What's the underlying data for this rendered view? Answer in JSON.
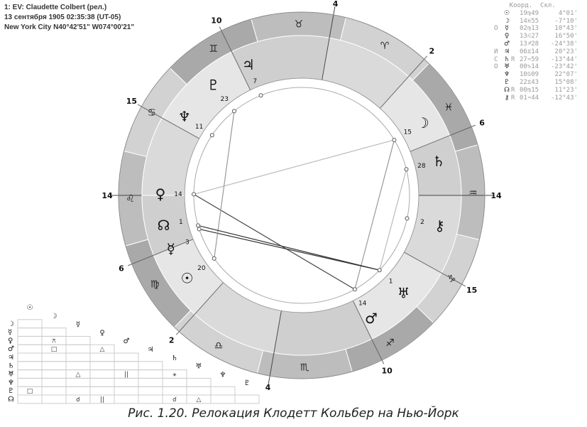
{
  "header": {
    "line1": "1: EV: Claudette Colbert (рел.)",
    "line2": "13 сентября 1905 02:35:38 (UT-05)",
    "line3": "New York City N40°42'51\" W074°00'21\""
  },
  "table": {
    "head": "    Коорд.  Скл.",
    "rows": [
      {
        "m": " ",
        "g": "☉",
        "r": " ",
        "c": "19♍49",
        "d": "  4°01'"
      },
      {
        "m": " ",
        "g": "☽",
        "r": " ",
        "c": "14♓55",
        "d": " -7°10'"
      },
      {
        "m": "О",
        "g": "☿",
        "r": " ",
        "c": "02♍13",
        "d": " 10°43'"
      },
      {
        "m": " ",
        "g": "♀",
        "r": " ",
        "c": "13♌27",
        "d": " 16°50'"
      },
      {
        "m": " ",
        "g": "♂",
        "r": " ",
        "c": "13♐28",
        "d": "-24°38'"
      },
      {
        "m": "И",
        "g": "♃",
        "r": " ",
        "c": "06♊14",
        "d": " 20°23'"
      },
      {
        "m": "С",
        "g": "♄",
        "r": "R",
        "c": "27♒59",
        "d": "-13°44'"
      },
      {
        "m": "О",
        "g": "♅",
        "r": " ",
        "c": "00♑14",
        "d": "-23°42'"
      },
      {
        "m": " ",
        "g": "♆",
        "r": " ",
        "c": "10♋09",
        "d": " 22°07'"
      },
      {
        "m": " ",
        "g": "♇",
        "r": " ",
        "c": "22♊43",
        "d": " 15°08'"
      },
      {
        "m": " ",
        "g": "☊",
        "r": "R",
        "c": "00♍15",
        "d": " 11°23'"
      },
      {
        "m": " ",
        "g": "⚷",
        "r": "R",
        "c": "01♒44",
        "d": "-12°43'"
      }
    ]
  },
  "chart": {
    "asc": 134,
    "signs": [
      "♈",
      "♉",
      "♊",
      "♋",
      "♌",
      "♍",
      "♎",
      "♏",
      "♐",
      "♑",
      "♒",
      "♓"
    ],
    "cusps": [
      {
        "lon": 134,
        "label": "14"
      },
      {
        "lon": 156,
        "label": "6"
      },
      {
        "lon": 182,
        "label": "2"
      },
      {
        "lon": 214,
        "label": "4"
      },
      {
        "lon": 250,
        "label": "10"
      },
      {
        "lon": 285,
        "label": "15"
      },
      {
        "lon": 314,
        "label": "14"
      },
      {
        "lon": 336,
        "label": "6"
      },
      {
        "lon": 2,
        "label": "2"
      },
      {
        "lon": 34,
        "label": "4"
      },
      {
        "lon": 70,
        "label": "10"
      },
      {
        "lon": 105,
        "label": "15"
      }
    ],
    "planets": [
      {
        "g": "☉",
        "lon": 169.8,
        "deg": "20"
      },
      {
        "g": "☽",
        "lon": 344.9,
        "deg": "15"
      },
      {
        "g": "☿",
        "lon": 152.2,
        "deg": "3"
      },
      {
        "g": "♀",
        "lon": 133.4,
        "deg": "14"
      },
      {
        "g": "♂",
        "lon": 253.5,
        "deg": "14"
      },
      {
        "g": "♃",
        "lon": 66.2,
        "deg": "7"
      },
      {
        "g": "♄",
        "lon": 328,
        "deg": "28"
      },
      {
        "g": "♅",
        "lon": 270.2,
        "deg": "1"
      },
      {
        "g": "♆",
        "lon": 100.1,
        "deg": "11"
      },
      {
        "g": "♇",
        "lon": 82.7,
        "deg": "23"
      },
      {
        "g": "☊",
        "lon": 150.2,
        "deg": "1"
      },
      {
        "g": "⚷",
        "lon": 301.7,
        "deg": "2"
      }
    ],
    "aspects": [
      [
        1,
        3,
        "#bbb"
      ],
      [
        1,
        4,
        "#999"
      ],
      [
        3,
        4,
        "#444"
      ],
      [
        2,
        7,
        "#333"
      ],
      [
        6,
        7,
        "#bbb"
      ],
      [
        0,
        9,
        "#999"
      ],
      [
        7,
        10,
        "#333"
      ]
    ]
  },
  "grid": {
    "cols": [
      "☉",
      "☽",
      "☿",
      "♀",
      "♂",
      "♃",
      "♄",
      "♅",
      "♆",
      "♇"
    ],
    "rows": [
      "☽",
      "☿",
      "♀",
      "♂",
      "♃",
      "♄",
      "♅",
      "♆",
      "♇",
      "☊"
    ],
    "cells": [
      {
        "r": 2,
        "c": 1,
        "t": "⚻"
      },
      {
        "r": 3,
        "c": 1,
        "t": "□"
      },
      {
        "r": 3,
        "c": 3,
        "t": "△"
      },
      {
        "r": 6,
        "c": 2,
        "t": "△"
      },
      {
        "r": 6,
        "c": 4,
        "t": "||"
      },
      {
        "r": 6,
        "c": 6,
        "t": "⚹"
      },
      {
        "r": 8,
        "c": 0,
        "t": "□"
      },
      {
        "r": 9,
        "c": 2,
        "t": "☌"
      },
      {
        "r": 9,
        "c": 3,
        "t": "||"
      },
      {
        "r": 9,
        "c": 6,
        "t": "☌"
      },
      {
        "r": 9,
        "c": 7,
        "t": "△"
      }
    ]
  },
  "caption": "Рис. 1.20. Релокация Клодетт Кольбер на Нью-Йорк"
}
